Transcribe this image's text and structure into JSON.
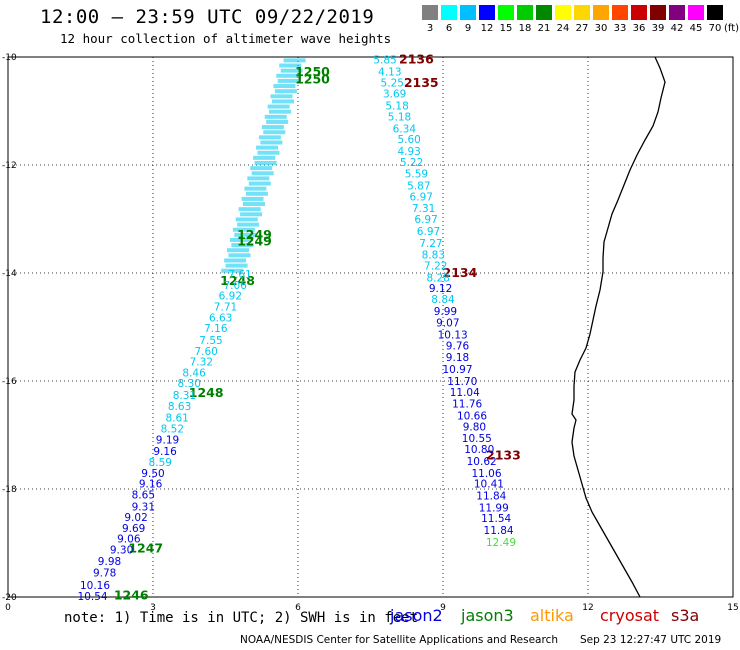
{
  "header": {
    "title": "12:00 – 23:59 UTC 09/22/2019",
    "subtitle": "12 hour collection of altimeter wave heights"
  },
  "legend": {
    "unit": "(ft)",
    "bins": [
      {
        "label": "3",
        "color": "#808080"
      },
      {
        "label": "6",
        "color": "#00ffff"
      },
      {
        "label": "9",
        "color": "#00bfff"
      },
      {
        "label": "12",
        "color": "#0000ff"
      },
      {
        "label": "15",
        "color": "#00ff00"
      },
      {
        "label": "18",
        "color": "#00cc00"
      },
      {
        "label": "21",
        "color": "#008800"
      },
      {
        "label": "24",
        "color": "#ffff00"
      },
      {
        "label": "27",
        "color": "#ffd700"
      },
      {
        "label": "30",
        "color": "#ffa500"
      },
      {
        "label": "33",
        "color": "#ff4500"
      },
      {
        "label": "36",
        "color": "#cc0000"
      },
      {
        "label": "39",
        "color": "#800000"
      },
      {
        "label": "42",
        "color": "#800080"
      },
      {
        "label": "45",
        "color": "#ff00ff"
      },
      {
        "label": "70",
        "color": "#000000"
      }
    ]
  },
  "map": {
    "lon_range": [
      0,
      15
    ],
    "lat_range": [
      -20,
      -10
    ],
    "lon_ticks": [
      "0",
      "3",
      "6",
      "9",
      "12",
      "15"
    ],
    "lat_ticks": [
      "-10",
      "-12",
      "-14",
      "-16",
      "-18",
      "-20"
    ],
    "colors": {
      "cyan": "#00c8f0",
      "blue": "#0000e0",
      "green": "#008000",
      "light_green": "#44dd44",
      "maroon": "#800000"
    },
    "labels": [
      {
        "text": "1250",
        "lon": 6.3,
        "lat": -10.28,
        "color": "green",
        "bold": true
      },
      {
        "text": "1250",
        "lon": 6.3,
        "lat": -10.42,
        "color": "green",
        "bold": true
      },
      {
        "text": "1249",
        "lon": 5.1,
        "lat": -13.3,
        "color": "green",
        "bold": true
      },
      {
        "text": "1249",
        "lon": 5.1,
        "lat": -13.42,
        "color": "green",
        "bold": true
      },
      {
        "text": "1248",
        "lon": 4.75,
        "lat": -14.15,
        "color": "green",
        "bold": true
      },
      {
        "text": "1248",
        "lon": 4.1,
        "lat": -16.22,
        "color": "green",
        "bold": true
      },
      {
        "text": "1247",
        "lon": 2.85,
        "lat": -19.1,
        "color": "green",
        "bold": true
      },
      {
        "text": "1246",
        "lon": 2.55,
        "lat": -19.97,
        "color": "green",
        "bold": true
      },
      {
        "text": "2136",
        "lon": 8.45,
        "lat": -10.05,
        "color": "maroon",
        "bold": true
      },
      {
        "text": "2135",
        "lon": 8.55,
        "lat": -10.48,
        "color": "maroon",
        "bold": true
      },
      {
        "text": "2134",
        "lon": 9.35,
        "lat": -14.0,
        "color": "maroon",
        "bold": true
      },
      {
        "text": "2133",
        "lon": 10.25,
        "lat": -17.38,
        "color": "maroon",
        "bold": true
      },
      {
        "text": "10.54",
        "lon": 1.75,
        "lat": -19.98,
        "color": "blue"
      },
      {
        "text": "10.16",
        "lon": 1.8,
        "lat": -19.78,
        "color": "blue"
      },
      {
        "text": "9.78",
        "lon": 2.0,
        "lat": -19.55,
        "color": "blue"
      },
      {
        "text": "9.98",
        "lon": 2.1,
        "lat": -19.33,
        "color": "blue"
      },
      {
        "text": "9.30",
        "lon": 2.35,
        "lat": -19.12,
        "color": "blue"
      },
      {
        "text": "9.06",
        "lon": 2.5,
        "lat": -18.92,
        "color": "blue"
      },
      {
        "text": "9.69",
        "lon": 2.6,
        "lat": -18.72,
        "color": "blue"
      },
      {
        "text": "9.02",
        "lon": 2.65,
        "lat": -18.52,
        "color": "blue"
      },
      {
        "text": "9.31",
        "lon": 2.8,
        "lat": -18.32,
        "color": "blue"
      },
      {
        "text": "8.65",
        "lon": 2.8,
        "lat": -18.1,
        "color": "blue"
      },
      {
        "text": "9.16",
        "lon": 2.95,
        "lat": -17.9,
        "color": "blue"
      },
      {
        "text": "9.50",
        "lon": 3.0,
        "lat": -17.7,
        "color": "blue"
      },
      {
        "text": "8.59",
        "lon": 3.15,
        "lat": -17.5,
        "color": "cyan"
      },
      {
        "text": "9.16",
        "lon": 3.25,
        "lat": -17.3,
        "color": "blue"
      },
      {
        "text": "9.19",
        "lon": 3.3,
        "lat": -17.08,
        "color": "blue"
      },
      {
        "text": "8.52",
        "lon": 3.4,
        "lat": -16.88,
        "color": "cyan"
      },
      {
        "text": "8.61",
        "lon": 3.5,
        "lat": -16.68,
        "color": "cyan"
      },
      {
        "text": "8.63",
        "lon": 3.55,
        "lat": -16.46,
        "color": "cyan"
      },
      {
        "text": "8.31",
        "lon": 3.65,
        "lat": -16.26,
        "color": "cyan"
      },
      {
        "text": "8.30",
        "lon": 3.75,
        "lat": -16.04,
        "color": "cyan"
      },
      {
        "text": "8.46",
        "lon": 3.85,
        "lat": -15.84,
        "color": "cyan"
      },
      {
        "text": "7.32",
        "lon": 4.0,
        "lat": -15.64,
        "color": "cyan"
      },
      {
        "text": "7.60",
        "lon": 4.1,
        "lat": -15.44,
        "color": "cyan"
      },
      {
        "text": "7.55",
        "lon": 4.2,
        "lat": -15.24,
        "color": "cyan"
      },
      {
        "text": "7.16",
        "lon": 4.3,
        "lat": -15.02,
        "color": "cyan"
      },
      {
        "text": "6.63",
        "lon": 4.4,
        "lat": -14.82,
        "color": "cyan"
      },
      {
        "text": "7.71",
        "lon": 4.5,
        "lat": -14.62,
        "color": "cyan"
      },
      {
        "text": "6.92",
        "lon": 4.6,
        "lat": -14.42,
        "color": "cyan"
      },
      {
        "text": "7.06",
        "lon": 4.7,
        "lat": -14.22,
        "color": "cyan"
      },
      {
        "text": "7.61",
        "lon": 4.8,
        "lat": -14.02,
        "color": "cyan"
      },
      {
        "text": "5.85",
        "lon": 7.8,
        "lat": -10.05,
        "color": "cyan"
      },
      {
        "text": "4.13",
        "lon": 7.9,
        "lat": -10.27,
        "color": "cyan"
      },
      {
        "text": "5.25",
        "lon": 7.95,
        "lat": -10.47,
        "color": "cyan"
      },
      {
        "text": "3.69",
        "lon": 8.0,
        "lat": -10.68,
        "color": "cyan"
      },
      {
        "text": "5.18",
        "lon": 8.05,
        "lat": -10.9,
        "color": "cyan"
      },
      {
        "text": "5.18",
        "lon": 8.1,
        "lat": -11.1,
        "color": "cyan"
      },
      {
        "text": "6.34",
        "lon": 8.2,
        "lat": -11.32,
        "color": "cyan"
      },
      {
        "text": "5.60",
        "lon": 8.3,
        "lat": -11.52,
        "color": "cyan"
      },
      {
        "text": "4.93",
        "lon": 8.3,
        "lat": -11.74,
        "color": "cyan"
      },
      {
        "text": "5.22",
        "lon": 8.35,
        "lat": -11.94,
        "color": "cyan"
      },
      {
        "text": "5.59",
        "lon": 8.45,
        "lat": -12.16,
        "color": "cyan"
      },
      {
        "text": "5.87",
        "lon": 8.5,
        "lat": -12.38,
        "color": "cyan"
      },
      {
        "text": "6.97",
        "lon": 8.55,
        "lat": -12.58,
        "color": "cyan"
      },
      {
        "text": "7.31",
        "lon": 8.6,
        "lat": -12.8,
        "color": "cyan"
      },
      {
        "text": "6.97",
        "lon": 8.65,
        "lat": -13.0,
        "color": "cyan"
      },
      {
        "text": "6.97",
        "lon": 8.7,
        "lat": -13.22,
        "color": "cyan"
      },
      {
        "text": "7.27",
        "lon": 8.75,
        "lat": -13.44,
        "color": "cyan"
      },
      {
        "text": "8.83",
        "lon": 8.8,
        "lat": -13.66,
        "color": "cyan"
      },
      {
        "text": "7.22",
        "lon": 8.85,
        "lat": -13.86,
        "color": "cyan"
      },
      {
        "text": "8.28",
        "lon": 8.9,
        "lat": -14.08,
        "color": "cyan"
      },
      {
        "text": "9.12",
        "lon": 8.95,
        "lat": -14.28,
        "color": "blue"
      },
      {
        "text": "8.84",
        "lon": 9.0,
        "lat": -14.48,
        "color": "cyan"
      },
      {
        "text": "9.99",
        "lon": 9.05,
        "lat": -14.7,
        "color": "blue"
      },
      {
        "text": "9.07",
        "lon": 9.1,
        "lat": -14.92,
        "color": "blue"
      },
      {
        "text": "10.13",
        "lon": 9.2,
        "lat": -15.14,
        "color": "blue"
      },
      {
        "text": "9.76",
        "lon": 9.3,
        "lat": -15.34,
        "color": "blue"
      },
      {
        "text": "9.18",
        "lon": 9.3,
        "lat": -15.56,
        "color": "blue"
      },
      {
        "text": "10.97",
        "lon": 9.3,
        "lat": -15.78,
        "color": "blue"
      },
      {
        "text": "11.70",
        "lon": 9.4,
        "lat": -16.0,
        "color": "blue"
      },
      {
        "text": "11.04",
        "lon": 9.45,
        "lat": -16.2,
        "color": "blue"
      },
      {
        "text": "11.76",
        "lon": 9.5,
        "lat": -16.42,
        "color": "blue"
      },
      {
        "text": "10.66",
        "lon": 9.6,
        "lat": -16.64,
        "color": "blue"
      },
      {
        "text": "9.80",
        "lon": 9.65,
        "lat": -16.84,
        "color": "blue"
      },
      {
        "text": "10.55",
        "lon": 9.7,
        "lat": -17.06,
        "color": "blue"
      },
      {
        "text": "10.80",
        "lon": 9.75,
        "lat": -17.26,
        "color": "blue"
      },
      {
        "text": "10.62",
        "lon": 9.8,
        "lat": -17.48,
        "color": "blue"
      },
      {
        "text": "11.06",
        "lon": 9.9,
        "lat": -17.7,
        "color": "blue"
      },
      {
        "text": "10.41",
        "lon": 9.95,
        "lat": -17.9,
        "color": "blue"
      },
      {
        "text": "11.84",
        "lon": 10.0,
        "lat": -18.12,
        "color": "blue"
      },
      {
        "text": "11.99",
        "lon": 10.05,
        "lat": -18.34,
        "color": "blue"
      },
      {
        "text": "11.54",
        "lon": 10.1,
        "lat": -18.54,
        "color": "blue"
      },
      {
        "text": "11.84",
        "lon": 10.15,
        "lat": -18.76,
        "color": "blue"
      },
      {
        "text": "12.49",
        "lon": 10.2,
        "lat": -18.98,
        "color": "light_green"
      }
    ]
  },
  "footer": {
    "note": "note: 1) Time is in UTC; 2) SWH is in feet",
    "satellites": [
      {
        "name": "jason2",
        "color": "#0000e0"
      },
      {
        "name": "jason3",
        "color": "#008000"
      },
      {
        "name": "altika",
        "color": "#ff9900"
      },
      {
        "name": "cryosat",
        "color": "#cc0000"
      },
      {
        "name": "s3a",
        "color": "#800000"
      }
    ],
    "credit": "NOAA/NESDIS Center for Satellite Applications and Research",
    "timestamp": "Sep 23 12:27:47 UTC 2019"
  }
}
